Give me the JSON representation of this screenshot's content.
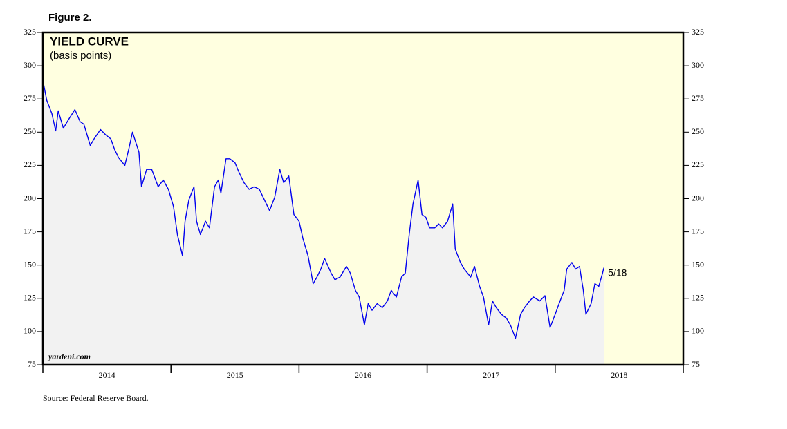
{
  "chart_data": {
    "type": "line",
    "figure_label": "Figure 2.",
    "title": "YIELD CURVE",
    "subtitle": "(basis points)",
    "watermark": "yardeni.com",
    "source": "Source: Federal Reserve Board.",
    "end_label": "5/18",
    "categories": [
      "2014",
      "2015",
      "2016",
      "2017",
      "2018"
    ],
    "xlim": [
      2014,
      2019
    ],
    "ylim": [
      75,
      325
    ],
    "yticks": [
      75,
      100,
      125,
      150,
      175,
      200,
      225,
      250,
      275,
      300,
      325
    ],
    "line_color": "#0000ee",
    "area_color": "#f2f2f2",
    "background_color": "#ffffe0",
    "x": [
      2014.0,
      2014.03,
      2014.07,
      2014.1,
      2014.12,
      2014.16,
      2014.21,
      2014.25,
      2014.29,
      2014.32,
      2014.37,
      2014.4,
      2014.45,
      2014.49,
      2014.53,
      2014.56,
      2014.59,
      2014.64,
      2014.67,
      2014.7,
      2014.75,
      2014.77,
      2014.81,
      2014.85,
      2014.9,
      2014.94,
      2014.98,
      2015.02,
      2015.05,
      2015.09,
      2015.11,
      2015.14,
      2015.18,
      2015.2,
      2015.23,
      2015.27,
      2015.3,
      2015.34,
      2015.37,
      2015.39,
      2015.43,
      2015.46,
      2015.5,
      2015.53,
      2015.57,
      2015.61,
      2015.65,
      2015.69,
      2015.73,
      2015.77,
      2015.81,
      2015.85,
      2015.88,
      2015.92,
      2015.96,
      2016.0,
      2016.03,
      2016.07,
      2016.11,
      2016.14,
      2016.17,
      2016.2,
      2016.25,
      2016.28,
      2016.32,
      2016.37,
      2016.4,
      2016.44,
      2016.47,
      2016.51,
      2016.54,
      2016.57,
      2016.61,
      2016.65,
      2016.69,
      2016.72,
      2016.76,
      2016.8,
      2016.83,
      2016.86,
      2016.89,
      2016.93,
      2016.96,
      2016.99,
      2017.02,
      2017.06,
      2017.09,
      2017.12,
      2017.16,
      2017.2,
      2017.22,
      2017.26,
      2017.29,
      2017.34,
      2017.37,
      2017.41,
      2017.44,
      2017.48,
      2017.51,
      2017.54,
      2017.58,
      2017.62,
      2017.65,
      2017.69,
      2017.73,
      2017.76,
      2017.8,
      2017.83,
      2017.88,
      2017.92,
      2017.96,
      2018.0,
      2018.03,
      2018.07,
      2018.09,
      2018.13,
      2018.16,
      2018.19,
      2018.22,
      2018.24,
      2018.28,
      2018.31,
      2018.34,
      2018.37,
      2018.38
    ],
    "values": [
      289,
      274,
      264,
      251,
      266,
      253,
      261,
      267,
      258,
      256,
      240,
      245,
      252,
      248,
      245,
      237,
      231,
      225,
      237,
      250,
      235,
      209,
      222,
      222,
      209,
      214,
      207,
      194,
      173,
      157,
      183,
      199,
      209,
      183,
      173,
      183,
      178,
      209,
      214,
      204,
      230,
      230,
      227,
      220,
      212,
      207,
      209,
      207,
      199,
      191,
      201,
      222,
      212,
      217,
      188,
      183,
      170,
      157,
      136,
      141,
      147,
      155,
      144,
      139,
      141,
      149,
      144,
      131,
      126,
      105,
      121,
      116,
      121,
      118,
      123,
      131,
      126,
      141,
      144,
      173,
      196,
      214,
      188,
      186,
      178,
      178,
      181,
      178,
      183,
      196,
      162,
      152,
      147,
      141,
      149,
      134,
      126,
      105,
      123,
      118,
      113,
      110,
      105,
      95,
      113,
      118,
      123,
      126,
      123,
      127,
      103,
      113,
      121,
      131,
      147,
      152,
      147,
      149,
      131,
      113,
      121,
      136,
      134,
      144,
      148
    ]
  }
}
